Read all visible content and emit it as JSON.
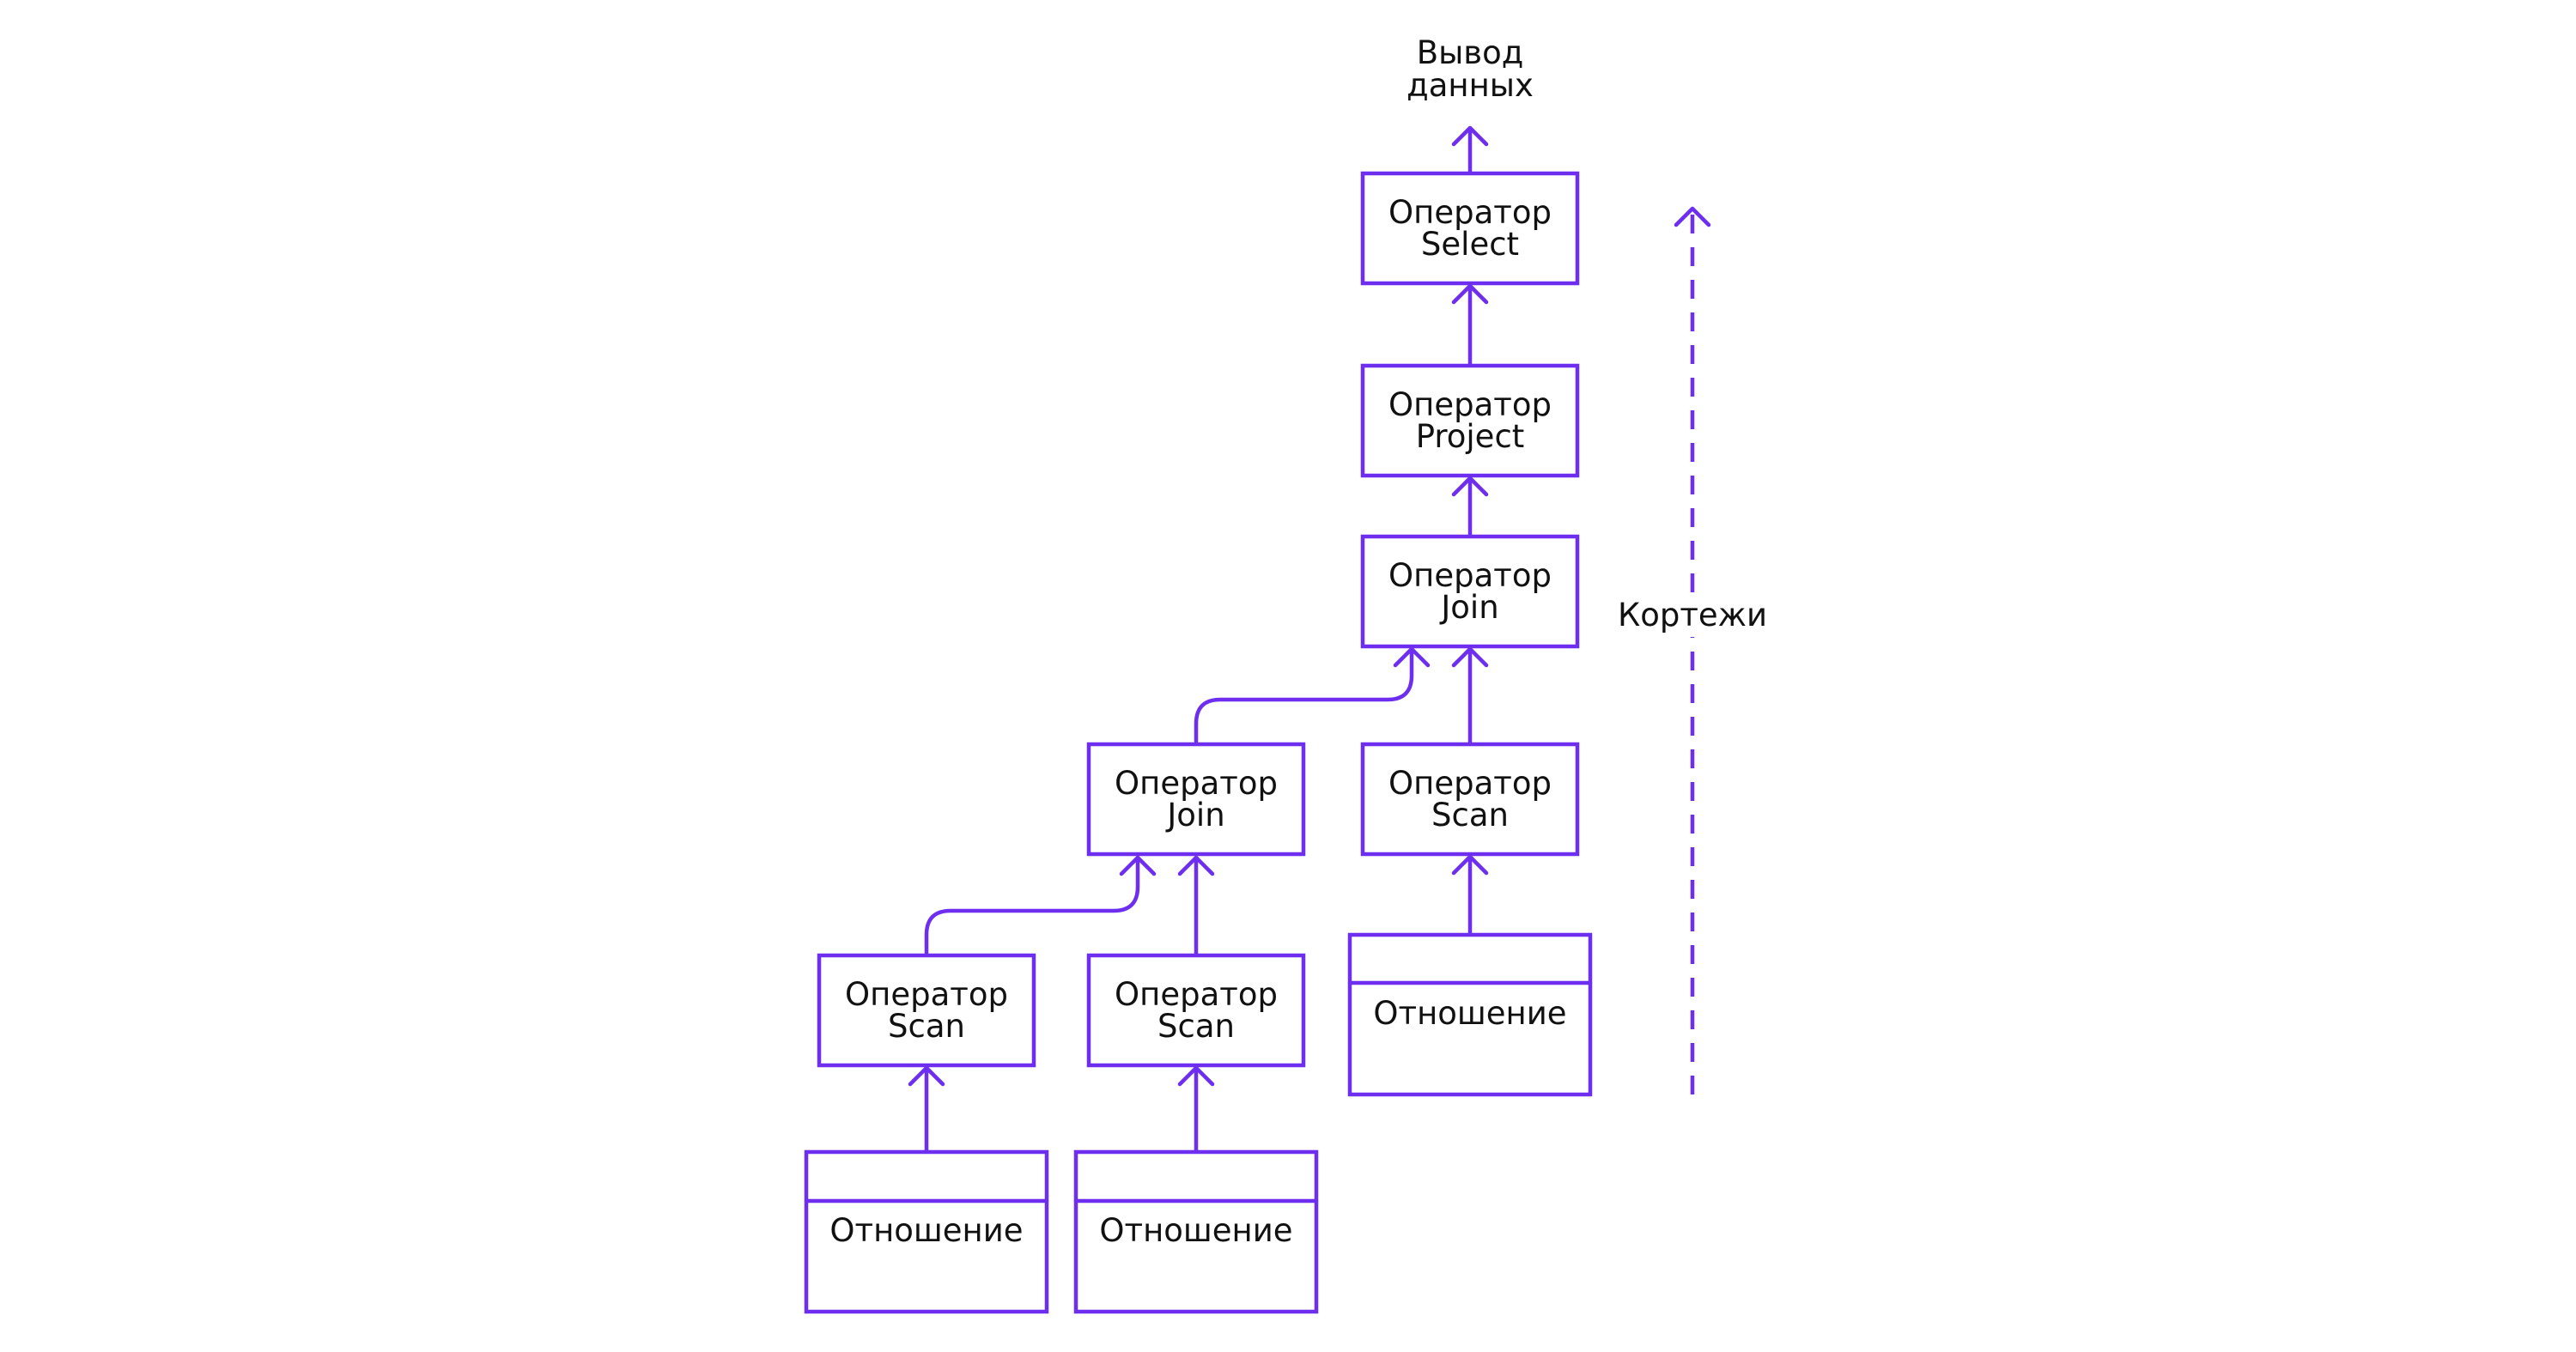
{
  "diagram": {
    "output_label": [
      "Вывод",
      "данных"
    ],
    "side_label": "Кортежи",
    "operators": {
      "select": [
        "Оператор",
        "Select"
      ],
      "project": [
        "Оператор",
        "Project"
      ],
      "join_top": [
        "Оператор",
        "Join"
      ],
      "join_mid": [
        "Оператор",
        "Join"
      ],
      "scan_right": [
        "Оператор",
        "Scan"
      ],
      "scan_left": [
        "Оператор",
        "Scan"
      ],
      "scan_middle": [
        "Оператор",
        "Scan"
      ]
    },
    "relations": {
      "right": "Отношение",
      "left": "Отношение",
      "middle": "Отношение"
    },
    "colors": {
      "accent": "#6d2ef0",
      "text": "#111111"
    }
  }
}
